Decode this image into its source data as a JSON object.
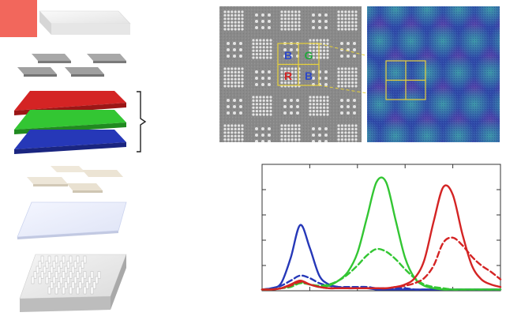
{
  "colors": {
    "red": "#d42424",
    "green": "#33c633",
    "blue": "#2638b8",
    "corner_tile": "#f2675c",
    "sem_bg": "#8b8b8b",
    "overlay_box": "#e8d23a"
  },
  "sem_image": {
    "labels": [
      {
        "text": "B",
        "color": "#2c48c8"
      },
      {
        "text": "G",
        "color": "#1fa83a"
      },
      {
        "text": "R",
        "color": "#d42424"
      },
      {
        "text": "B",
        "color": "#2c48c8"
      }
    ]
  },
  "chart_data": {
    "type": "line",
    "xlim": [
      0,
      10
    ],
    "ylim": [
      0,
      1
    ],
    "grid": false,
    "legend": "none",
    "x": [
      0,
      0.4,
      0.8,
      1.2,
      1.6,
      2.0,
      2.4,
      2.8,
      3.2,
      3.6,
      4.0,
      4.4,
      4.8,
      5.2,
      5.6,
      6.0,
      6.4,
      6.8,
      7.2,
      7.6,
      8.0,
      8.4,
      8.8,
      9.2,
      9.6,
      10.0
    ],
    "series": [
      {
        "color": "#2638b8",
        "style": "solid",
        "values": [
          0.01,
          0.02,
          0.06,
          0.26,
          0.52,
          0.34,
          0.12,
          0.05,
          0.03,
          0.02,
          0.02,
          0.02,
          0.01,
          0.01,
          0.01,
          0.01,
          0.01,
          0.01,
          0.01,
          0.01,
          0.01,
          0.01,
          0.01,
          0.01,
          0.01,
          0.01
        ]
      },
      {
        "color": "#2638b8",
        "style": "dashed",
        "values": [
          0.01,
          0.02,
          0.04,
          0.08,
          0.12,
          0.1,
          0.06,
          0.04,
          0.03,
          0.03,
          0.03,
          0.03,
          0.02,
          0.02,
          0.02,
          0.02,
          0.01,
          0.01,
          0.01,
          0.01,
          0.01,
          0.01,
          0.01,
          0.01,
          0.01,
          0.01
        ]
      },
      {
        "color": "#33c633",
        "style": "solid",
        "values": [
          0.01,
          0.01,
          0.02,
          0.04,
          0.07,
          0.05,
          0.03,
          0.04,
          0.08,
          0.15,
          0.3,
          0.58,
          0.86,
          0.86,
          0.56,
          0.26,
          0.1,
          0.04,
          0.02,
          0.01,
          0.01,
          0.01,
          0.01,
          0.01,
          0.01,
          0.01
        ]
      },
      {
        "color": "#33c633",
        "style": "dashed",
        "values": [
          0.01,
          0.01,
          0.02,
          0.03,
          0.06,
          0.05,
          0.04,
          0.05,
          0.08,
          0.13,
          0.2,
          0.28,
          0.33,
          0.31,
          0.25,
          0.17,
          0.1,
          0.05,
          0.03,
          0.02,
          0.01,
          0.01,
          0.01,
          0.01,
          0.01,
          0.01
        ]
      },
      {
        "color": "#d42424",
        "style": "solid",
        "values": [
          0.01,
          0.01,
          0.02,
          0.05,
          0.08,
          0.05,
          0.03,
          0.02,
          0.02,
          0.02,
          0.02,
          0.02,
          0.02,
          0.02,
          0.03,
          0.05,
          0.1,
          0.24,
          0.55,
          0.82,
          0.76,
          0.45,
          0.2,
          0.09,
          0.05,
          0.03
        ]
      },
      {
        "color": "#d42424",
        "style": "dashed",
        "values": [
          0.01,
          0.01,
          0.02,
          0.04,
          0.07,
          0.05,
          0.03,
          0.02,
          0.02,
          0.02,
          0.02,
          0.02,
          0.02,
          0.02,
          0.03,
          0.04,
          0.06,
          0.1,
          0.2,
          0.38,
          0.42,
          0.36,
          0.27,
          0.2,
          0.15,
          0.09
        ]
      }
    ]
  }
}
